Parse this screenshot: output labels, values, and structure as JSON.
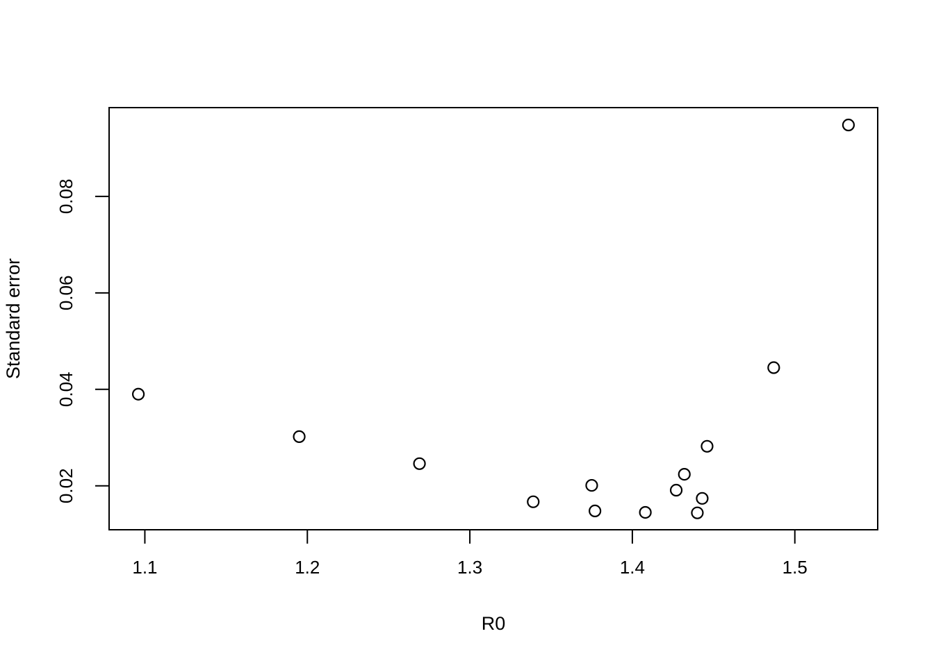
{
  "figure": {
    "background": "#ffffff",
    "axis_color": "#000000",
    "text_color": "#000000"
  },
  "chart_data": {
    "type": "scatter",
    "title": "",
    "xlabel": "R0",
    "ylabel": "Standard error",
    "xlim": [
      1.078,
      1.551
    ],
    "ylim": [
      0.0109,
      0.0984
    ],
    "grid": false,
    "legend": null,
    "x_ticks": {
      "values": [
        1.1,
        1.2,
        1.3,
        1.4,
        1.5
      ],
      "labels": [
        "1.1",
        "1.2",
        "1.3",
        "1.4",
        "1.5"
      ]
    },
    "y_ticks": {
      "values": [
        0.02,
        0.04,
        0.06,
        0.08
      ],
      "labels": [
        "0.02",
        "0.04",
        "0.06",
        "0.08"
      ]
    },
    "marker": {
      "shape": "open-circle",
      "radius_px": 8,
      "stroke_px": 2.2,
      "color": "#000000"
    },
    "points": [
      {
        "x": 1.096,
        "y": 0.039
      },
      {
        "x": 1.195,
        "y": 0.0302
      },
      {
        "x": 1.269,
        "y": 0.0246
      },
      {
        "x": 1.339,
        "y": 0.0167
      },
      {
        "x": 1.375,
        "y": 0.0201
      },
      {
        "x": 1.377,
        "y": 0.0148
      },
      {
        "x": 1.408,
        "y": 0.0145
      },
      {
        "x": 1.427,
        "y": 0.0191
      },
      {
        "x": 1.432,
        "y": 0.0224
      },
      {
        "x": 1.44,
        "y": 0.0144
      },
      {
        "x": 1.443,
        "y": 0.0174
      },
      {
        "x": 1.446,
        "y": 0.0282
      },
      {
        "x": 1.487,
        "y": 0.0445
      },
      {
        "x": 1.533,
        "y": 0.0948
      }
    ]
  }
}
